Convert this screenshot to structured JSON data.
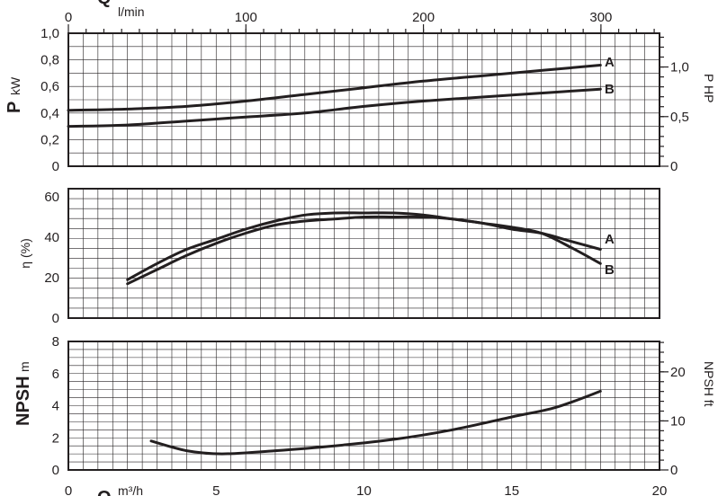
{
  "chart_data": [
    {
      "type": "line",
      "panel": "power",
      "ylabel_symbol": "P",
      "ylabel_unit": "kW",
      "ylabel_right": "P HP",
      "ylim": [
        0,
        1.0
      ],
      "yticks": [
        "1,0",
        "0,8",
        "0,6",
        "0,4",
        "0,2",
        "0"
      ],
      "ylim_right": [
        0,
        1.34
      ],
      "yticks_right": [
        "1,0",
        "0,5",
        "0"
      ],
      "top_axis_symbol": "Q",
      "top_axis_unit": "l/min",
      "xlim_top": [
        0,
        333
      ],
      "xticks_top": [
        "0",
        "100",
        "200",
        "300"
      ],
      "x_unit": "m³/h",
      "series": [
        {
          "name": "A",
          "x": [
            0,
            2,
            4,
            6,
            8,
            10,
            12,
            14,
            16,
            18
          ],
          "y": [
            0.42,
            0.43,
            0.45,
            0.49,
            0.54,
            0.59,
            0.64,
            0.68,
            0.72,
            0.76
          ]
        },
        {
          "name": "B",
          "x": [
            0,
            2,
            4,
            6,
            8,
            10,
            12,
            14,
            16,
            18
          ],
          "y": [
            0.3,
            0.31,
            0.34,
            0.37,
            0.4,
            0.45,
            0.49,
            0.52,
            0.55,
            0.58
          ]
        }
      ]
    },
    {
      "type": "line",
      "panel": "efficiency",
      "ylabel": "η (%)",
      "ylim": [
        0,
        64
      ],
      "yticks": [
        "60",
        "40",
        "20",
        "0"
      ],
      "series": [
        {
          "name": "A",
          "x": [
            2,
            3,
            4,
            5,
            6,
            7,
            8,
            9,
            10,
            11,
            12,
            13,
            14,
            15,
            16,
            17,
            18
          ],
          "y": [
            19,
            27,
            34,
            39,
            44,
            48,
            51,
            52,
            52,
            52,
            51,
            49,
            47,
            44,
            42,
            38,
            34
          ]
        },
        {
          "name": "B",
          "x": [
            2,
            3,
            4,
            5,
            6,
            7,
            8,
            9,
            10,
            11,
            12,
            13,
            14,
            15,
            16,
            17,
            18
          ],
          "y": [
            17,
            24,
            31,
            37,
            42,
            46,
            48,
            49,
            50,
            50,
            50,
            49,
            47,
            45,
            42,
            35,
            27
          ]
        }
      ]
    },
    {
      "type": "line",
      "panel": "npsh",
      "ylabel_symbol": "NPSH",
      "ylabel_unit": "m",
      "ylabel_right": "NPSH ft",
      "ylim": [
        0,
        8
      ],
      "yticks": [
        "8",
        "6",
        "4",
        "2",
        "0"
      ],
      "ylim_right": [
        0,
        26.2
      ],
      "yticks_right": [
        "20",
        "10",
        "0"
      ],
      "x_symbol": "Q",
      "x_unit": "m³/h",
      "xlim": [
        0,
        20
      ],
      "xticks": [
        "0",
        "5",
        "10",
        "15",
        "20"
      ],
      "series": [
        {
          "name": "NPSH",
          "x": [
            2.8,
            4,
            5.2,
            7,
            9,
            11,
            13,
            15,
            16.5,
            18
          ],
          "y": [
            1.8,
            1.2,
            1.0,
            1.2,
            1.5,
            1.9,
            2.5,
            3.3,
            3.9,
            4.9
          ]
        }
      ]
    }
  ]
}
